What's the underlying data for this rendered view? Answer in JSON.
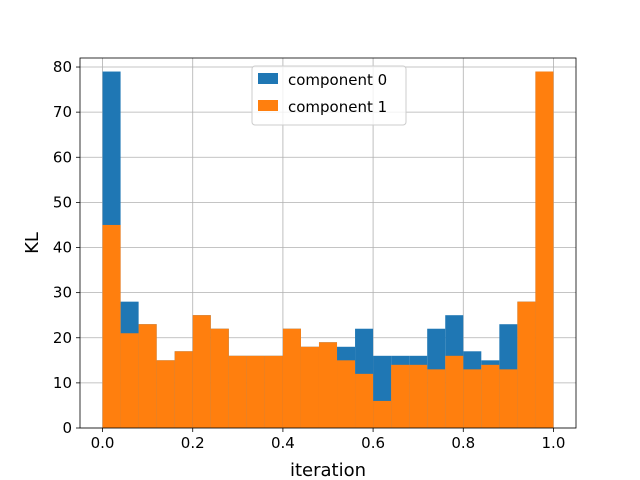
{
  "chart_data": {
    "type": "bar",
    "subtype": "stacked-histogram",
    "title": "",
    "xlabel": "iteration",
    "ylabel": "KL",
    "xlim": [
      -0.05,
      1.05
    ],
    "ylim": [
      0,
      82
    ],
    "x_ticks": [
      "0.0",
      "0.2",
      "0.4",
      "0.6",
      "0.8",
      "1.0"
    ],
    "y_ticks": [
      "0",
      "10",
      "20",
      "30",
      "40",
      "50",
      "60",
      "70",
      "80"
    ],
    "grid": true,
    "legend_position": "upper-center",
    "bin_edges": [
      0.0,
      0.04,
      0.08,
      0.12,
      0.16,
      0.2,
      0.24,
      0.28,
      0.32,
      0.36,
      0.4,
      0.44,
      0.48,
      0.52,
      0.56,
      0.6,
      0.64,
      0.68,
      0.72,
      0.76,
      0.8,
      0.84,
      0.88,
      0.92,
      0.96,
      1.0
    ],
    "series": [
      {
        "name": "component 0",
        "color": "#1f77b4",
        "values": [
          79,
          28,
          23,
          15,
          17,
          25,
          22,
          16,
          16,
          16,
          22,
          18,
          19,
          18,
          22,
          16,
          16,
          16,
          22,
          25,
          17,
          15,
          23,
          28,
          79
        ]
      },
      {
        "name": "component 1",
        "color": "#ff7f0e",
        "values": [
          45,
          21,
          23,
          15,
          17,
          25,
          22,
          16,
          16,
          16,
          22,
          18,
          19,
          15,
          12,
          6,
          14,
          14,
          13,
          16,
          13,
          14,
          13,
          28,
          79
        ]
      }
    ]
  }
}
